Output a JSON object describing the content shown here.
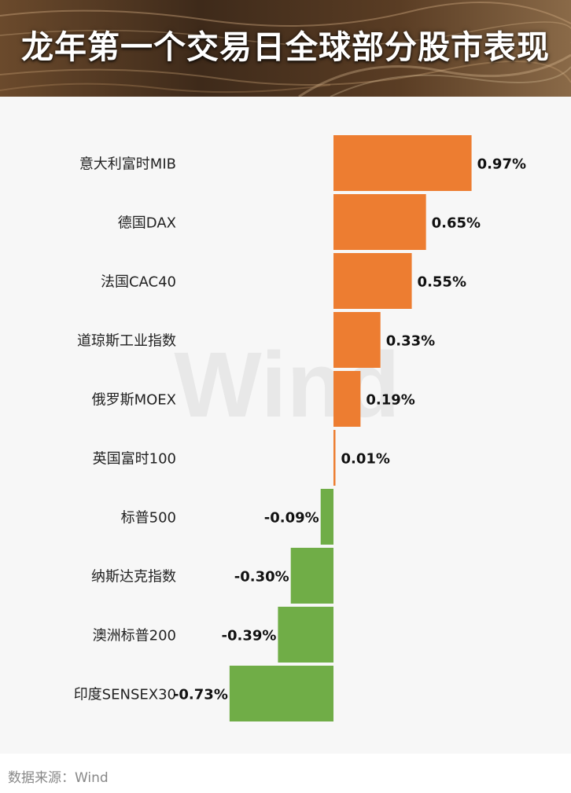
{
  "header": {
    "title": "龙年第一个交易日全球部分股市表现"
  },
  "watermark": {
    "text": "Wind"
  },
  "footer": {
    "source": "数据来源：Wind"
  },
  "colors": {
    "positive": "#ed7d31",
    "negative": "#70ad47",
    "panel_bg": "#f7f7f7"
  },
  "chart_data": {
    "type": "bar",
    "orientation": "horizontal",
    "title": "龙年第一个交易日全球部分股市表现",
    "categories": [
      "意大利富时MIB",
      "德国DAX",
      "法国CAC40",
      "道琼斯工业指数",
      "俄罗斯MOEX",
      "英国富时100",
      "标普500",
      "纳斯达克指数",
      "澳洲标普200",
      "印度SENSEX30"
    ],
    "values": [
      0.97,
      0.65,
      0.55,
      0.33,
      0.19,
      0.01,
      -0.09,
      -0.3,
      -0.39,
      -0.73
    ],
    "value_labels": [
      "0.97%",
      "0.65%",
      "0.55%",
      "0.33%",
      "0.19%",
      "0.01%",
      "-0.09%",
      "-0.30%",
      "-0.39%",
      "-0.73%"
    ],
    "unit": "%",
    "xlabel": "",
    "ylabel": "",
    "grid": false,
    "legend": "none"
  }
}
